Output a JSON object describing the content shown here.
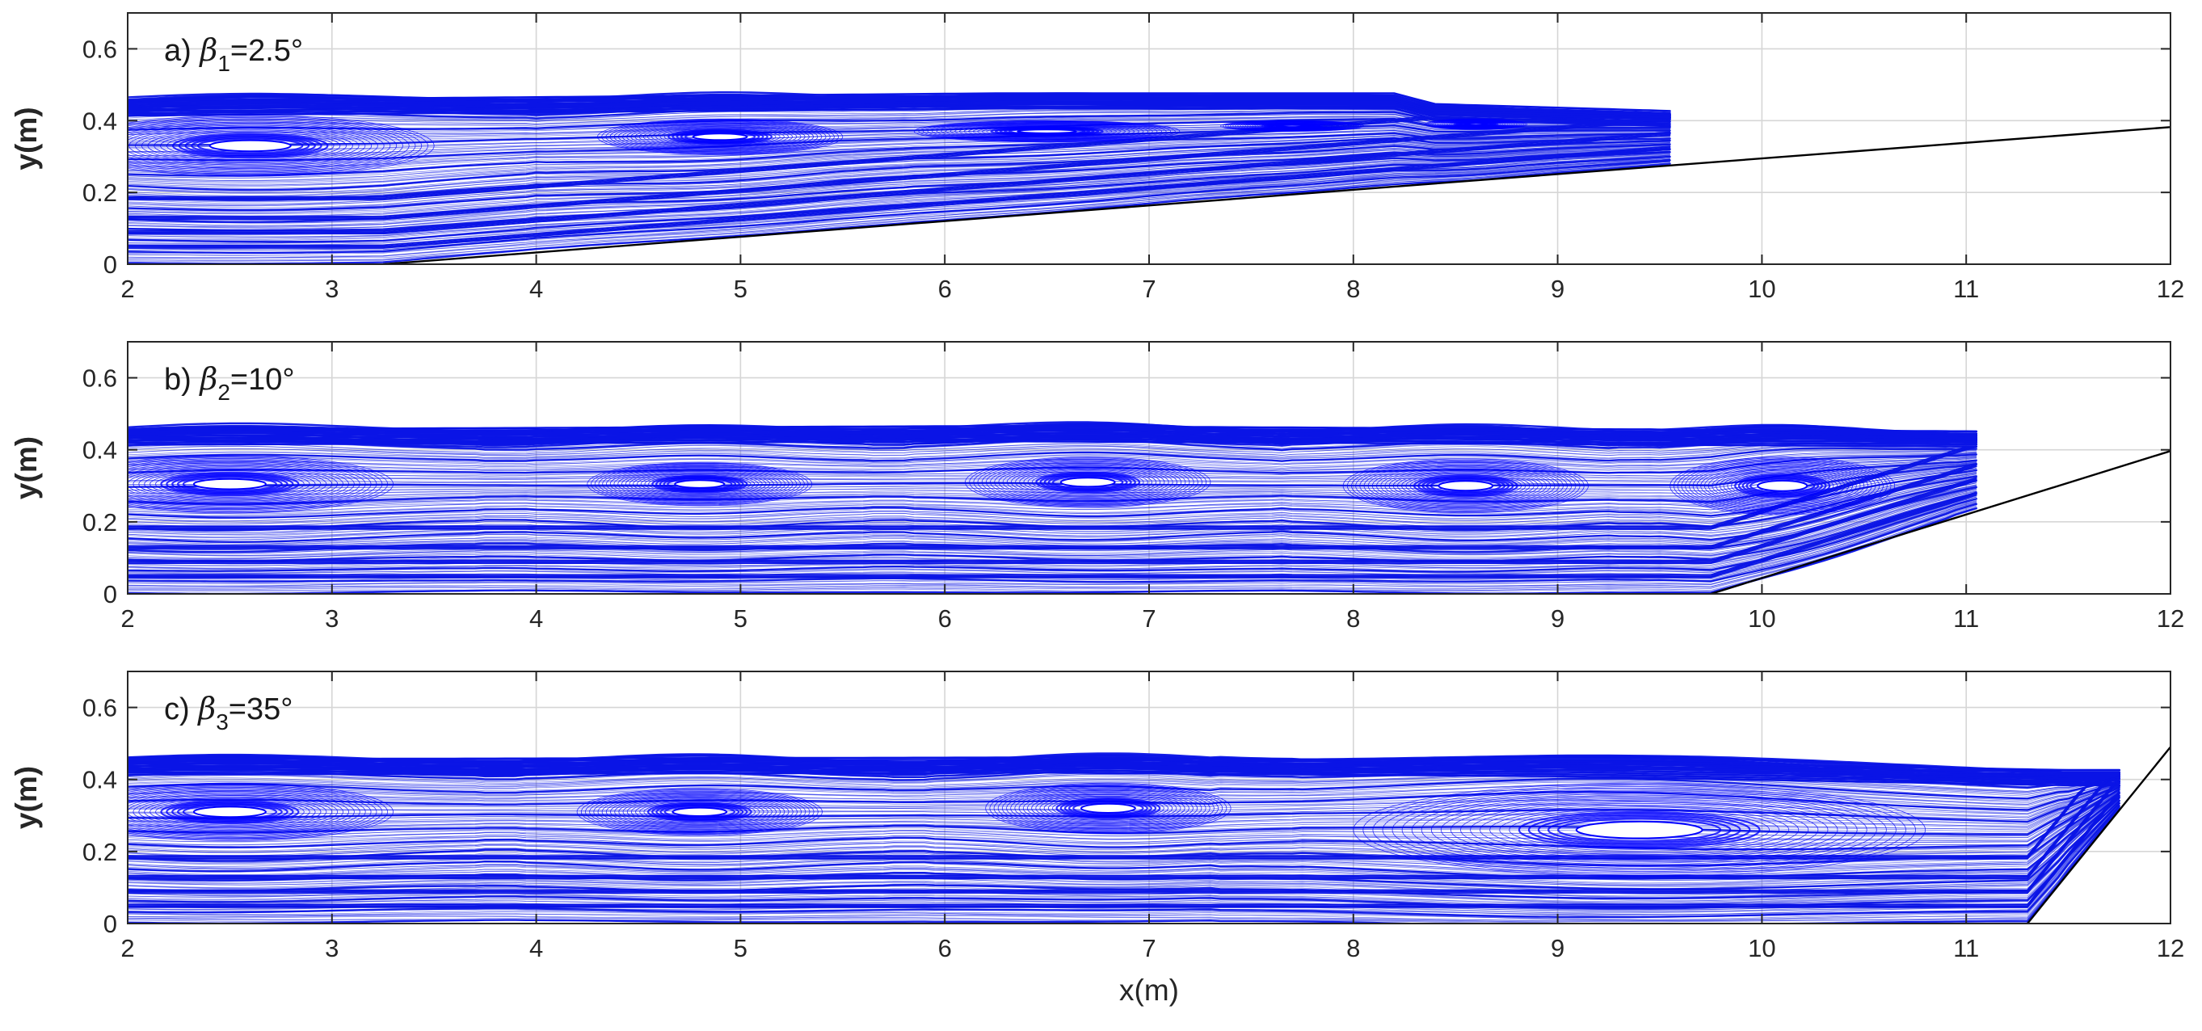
{
  "chart_data": [
    {
      "type": "streamline",
      "panel_label": "a) ",
      "beta_symbol": "β",
      "beta_subscript": "1",
      "beta_value": "=2.5°",
      "beta_deg": 2.5,
      "xlim": [
        2,
        12
      ],
      "ylim": [
        0,
        0.7
      ],
      "xticks": [
        "2",
        "3",
        "4",
        "5",
        "6",
        "7",
        "8",
        "9",
        "10",
        "11",
        "12"
      ],
      "yticks": [
        "0",
        "0.2",
        "0.4",
        "0.6"
      ],
      "ylabel": "y(m)",
      "xlabel": "",
      "grid": true,
      "stream_color": "#0000ff",
      "slope_toe_x": 3.25,
      "water_surface": {
        "x": [
          2,
          6.3,
          8.2,
          8.4,
          9.6
        ],
        "y": [
          0.46,
          0.48,
          0.48,
          0.45,
          0.43
        ]
      },
      "eddies": [
        {
          "x": 2.6,
          "y": 0.33,
          "rx": 0.9,
          "ry": 0.085
        },
        {
          "x": 4.9,
          "y": 0.355,
          "rx": 0.6,
          "ry": 0.05
        },
        {
          "x": 6.5,
          "y": 0.37,
          "rx": 0.65,
          "ry": 0.03
        },
        {
          "x": 7.7,
          "y": 0.385,
          "rx": 0.35,
          "ry": 0.015
        },
        {
          "x": 8.6,
          "y": 0.39,
          "rx": 0.25,
          "ry": 0.015
        }
      ],
      "flow_end_x": 9.6
    },
    {
      "type": "streamline",
      "panel_label": "b) ",
      "beta_symbol": "β",
      "beta_subscript": "2",
      "beta_value": "=10°",
      "beta_deg": 10,
      "xlim": [
        2,
        12
      ],
      "ylim": [
        0,
        0.7
      ],
      "xticks": [
        "2",
        "3",
        "4",
        "5",
        "6",
        "7",
        "8",
        "9",
        "10",
        "11",
        "12"
      ],
      "yticks": [
        "0",
        "0.2",
        "0.4",
        "0.6"
      ],
      "ylabel": "y(m)",
      "xlabel": "",
      "grid": true,
      "stream_color": "#0000ff",
      "slope_toe_x": 9.75,
      "water_surface": {
        "x": [
          2,
          6.25,
          8.0,
          11.1
        ],
        "y": [
          0.46,
          0.47,
          0.465,
          0.455
        ]
      },
      "eddies": [
        {
          "x": 2.5,
          "y": 0.305,
          "rx": 0.8,
          "ry": 0.08
        },
        {
          "x": 4.8,
          "y": 0.305,
          "rx": 0.55,
          "ry": 0.06
        },
        {
          "x": 6.7,
          "y": 0.31,
          "rx": 0.6,
          "ry": 0.07
        },
        {
          "x": 8.55,
          "y": 0.3,
          "rx": 0.6,
          "ry": 0.075
        },
        {
          "x": 10.1,
          "y": 0.3,
          "rx": 0.55,
          "ry": 0.08
        }
      ],
      "flow_end_x": 11.1
    },
    {
      "type": "streamline",
      "panel_label": "c) ",
      "beta_symbol": "β",
      "beta_subscript": "3",
      "beta_value": "=35°",
      "beta_deg": 35,
      "xlim": [
        2,
        12
      ],
      "ylim": [
        0,
        0.7
      ],
      "xticks": [
        "2",
        "3",
        "4",
        "5",
        "6",
        "7",
        "8",
        "9",
        "10",
        "11",
        "12"
      ],
      "yticks": [
        "0",
        "0.2",
        "0.4",
        "0.6"
      ],
      "ylabel": "y(m)",
      "xlabel": "x(m)",
      "grid": true,
      "stream_color": "#0000ff",
      "slope_toe_x": 11.3,
      "water_surface": {
        "x": [
          2,
          6.5,
          9.0,
          11.5
        ],
        "y": [
          0.46,
          0.465,
          0.455,
          0.43
        ]
      },
      "eddies": [
        {
          "x": 2.5,
          "y": 0.31,
          "rx": 0.8,
          "ry": 0.08
        },
        {
          "x": 4.8,
          "y": 0.31,
          "rx": 0.6,
          "ry": 0.065
        },
        {
          "x": 6.8,
          "y": 0.32,
          "rx": 0.6,
          "ry": 0.07
        },
        {
          "x": 9.4,
          "y": 0.26,
          "rx": 1.4,
          "ry": 0.13
        }
      ],
      "flow_end_x": 11.8
    }
  ]
}
